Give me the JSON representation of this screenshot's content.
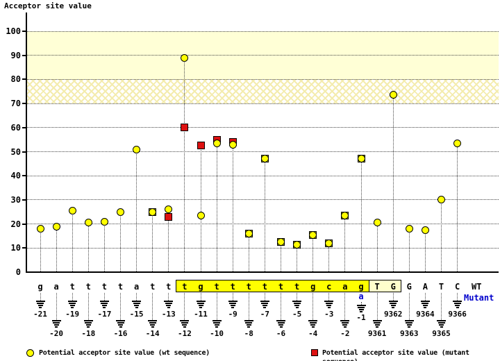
{
  "title": "Acceptor site value",
  "axis_labels": {
    "wt_row": "WT",
    "mutant_row": "Mutant"
  },
  "legend": {
    "wt": "Potential acceptor site value (wt sequence)",
    "mutant": "Potential acceptor site value (mutant sequence)"
  },
  "colors": {
    "wt_marker": "#ffff00",
    "mutant_marker": "#dd1111",
    "highlight_box": "#ffff00",
    "exon_box": "#ffffcc",
    "band_solid": "#ffffd6",
    "mutant_blue": "#0000cc"
  },
  "chart_data": {
    "type": "scatter",
    "title": "Acceptor site value",
    "ylabel": "Acceptor site value",
    "ylim": [
      0,
      105
    ],
    "y_ticks": [
      0,
      10,
      20,
      30,
      40,
      50,
      60,
      70,
      80,
      90,
      100
    ],
    "grid": "dotted-horizontal",
    "legend_position": "bottom",
    "bands": [
      {
        "from": 80,
        "to": 100,
        "style": "solid"
      },
      {
        "from": 70,
        "to": 80,
        "style": "hatched"
      }
    ],
    "series_names": [
      "wt",
      "mutant"
    ],
    "points": [
      {
        "base": "g",
        "pos": "-21",
        "wt": 18,
        "mut": null,
        "row": "upper",
        "region": "intron"
      },
      {
        "base": "a",
        "pos": "-20",
        "wt": 19,
        "mut": null,
        "row": "lower",
        "region": "intron"
      },
      {
        "base": "t",
        "pos": "-19",
        "wt": 25.5,
        "mut": null,
        "row": "upper",
        "region": "intron"
      },
      {
        "base": "t",
        "pos": "-18",
        "wt": 20.5,
        "mut": null,
        "row": "lower",
        "region": "intron"
      },
      {
        "base": "t",
        "pos": "-17",
        "wt": 21,
        "mut": null,
        "row": "upper",
        "region": "intron"
      },
      {
        "base": "t",
        "pos": "-16",
        "wt": 25,
        "mut": null,
        "row": "lower",
        "region": "intron"
      },
      {
        "base": "a",
        "pos": "-15",
        "wt": 51,
        "mut": null,
        "row": "upper",
        "region": "intron"
      },
      {
        "base": "t",
        "pos": "-14",
        "wt": 25,
        "mut": 25,
        "row": "lower",
        "region": "intron"
      },
      {
        "base": "t",
        "pos": "-13",
        "wt": 26,
        "mut": 23,
        "row": "upper",
        "region": "intron"
      },
      {
        "base": "t",
        "pos": "-12",
        "wt": 89,
        "mut": 60,
        "row": "lower",
        "region": "highlight"
      },
      {
        "base": "g",
        "pos": "-11",
        "wt": 23.5,
        "mut": 52.5,
        "row": "upper",
        "region": "highlight"
      },
      {
        "base": "t",
        "pos": "-10",
        "wt": 53.5,
        "mut": 55,
        "row": "lower",
        "region": "highlight"
      },
      {
        "base": "t",
        "pos": "-9",
        "wt": 53,
        "mut": 54,
        "row": "upper",
        "region": "highlight"
      },
      {
        "base": "t",
        "pos": "-8",
        "wt": 16,
        "mut": 16,
        "row": "lower",
        "region": "highlight"
      },
      {
        "base": "t",
        "pos": "-7",
        "wt": 47,
        "mut": 47,
        "row": "upper",
        "region": "highlight"
      },
      {
        "base": "t",
        "pos": "-6",
        "wt": 12.5,
        "mut": 12.5,
        "row": "lower",
        "region": "highlight"
      },
      {
        "base": "t",
        "pos": "-5",
        "wt": 11.5,
        "mut": 11.5,
        "row": "upper",
        "region": "highlight"
      },
      {
        "base": "g",
        "pos": "-4",
        "wt": 15.5,
        "mut": 15.5,
        "row": "lower",
        "region": "highlight"
      },
      {
        "base": "c",
        "pos": "-3",
        "wt": 12,
        "mut": 12,
        "row": "upper",
        "region": "highlight"
      },
      {
        "base": "a",
        "pos": "-2",
        "wt": 23.5,
        "mut": 23.5,
        "row": "lower",
        "region": "highlight"
      },
      {
        "base": "g",
        "pos": "-1",
        "wt": 47,
        "mut": 47,
        "row": "upper",
        "region": "highlight",
        "mutant_base": "a"
      },
      {
        "base": "T",
        "pos": "9361",
        "wt": 20.5,
        "mut": null,
        "row": "lower",
        "region": "exon_box"
      },
      {
        "base": "G",
        "pos": "9362",
        "wt": 73.5,
        "mut": null,
        "row": "upper",
        "region": "exon_box"
      },
      {
        "base": "G",
        "pos": "9363",
        "wt": 18,
        "mut": null,
        "row": "lower",
        "region": "exon"
      },
      {
        "base": "A",
        "pos": "9364",
        "wt": 17.5,
        "mut": null,
        "row": "upper",
        "region": "exon"
      },
      {
        "base": "T",
        "pos": "9365",
        "wt": 30,
        "mut": null,
        "row": "lower",
        "region": "exon"
      },
      {
        "base": "C",
        "pos": "9366",
        "wt": 53.5,
        "mut": null,
        "row": "upper",
        "region": "exon"
      }
    ]
  }
}
